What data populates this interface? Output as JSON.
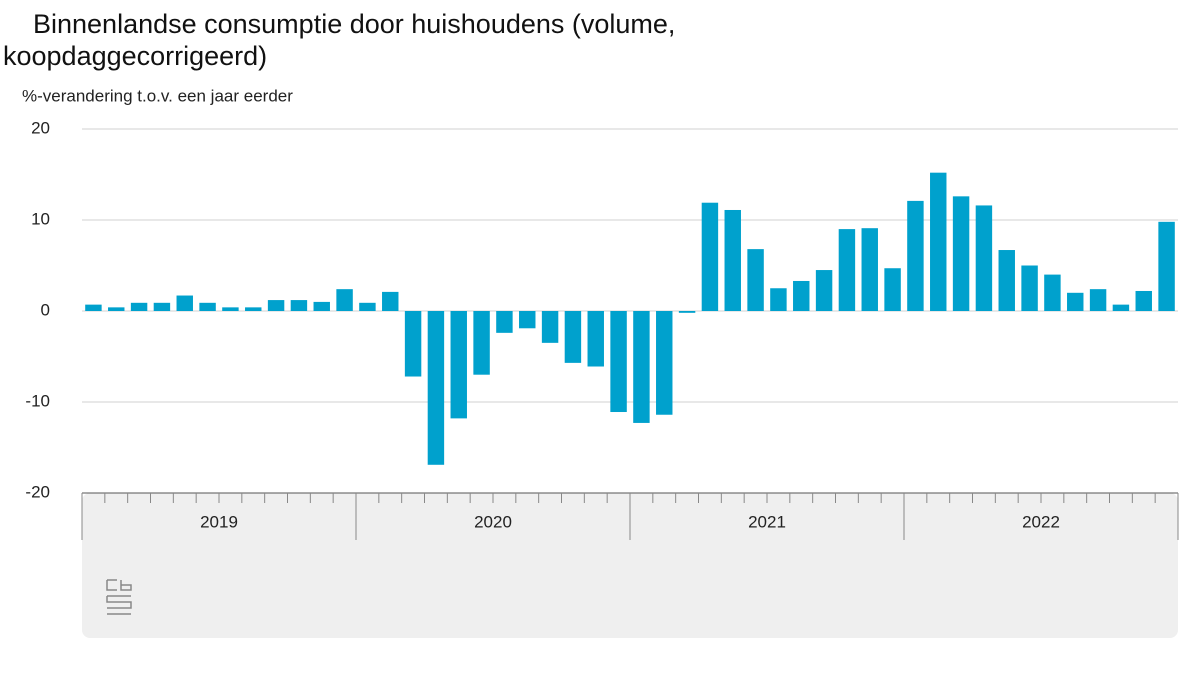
{
  "chart_data": {
    "type": "bar",
    "title": "Binnenlandse consumptie door huishoudens (volume, koopdaggecorrigeerd)",
    "y_axis_label": "%-verandering t.o.v. een jaar eerder",
    "categories": [
      null,
      null,
      null,
      null,
      null,
      null,
      null,
      null,
      null,
      null,
      null,
      null,
      null,
      null,
      null,
      null,
      null,
      null,
      null,
      null,
      null,
      null,
      null,
      null,
      null,
      null,
      null,
      null,
      null,
      null,
      null,
      null,
      null,
      null,
      null,
      null,
      null,
      null,
      null,
      null,
      null,
      null,
      null,
      null,
      null,
      null,
      null,
      null
    ],
    "year_labels": [
      "2019",
      "2020",
      "2021",
      "2022"
    ],
    "values": [
      0.7,
      0.4,
      0.9,
      0.9,
      1.7,
      0.9,
      0.4,
      0.4,
      1.2,
      1.2,
      1.0,
      2.4,
      0.9,
      2.1,
      -7.2,
      -16.9,
      -11.8,
      -7.0,
      -2.4,
      -1.9,
      -3.5,
      -5.7,
      -6.1,
      -11.1,
      -12.3,
      -11.4,
      -0.2,
      11.9,
      11.1,
      6.8,
      2.5,
      3.3,
      4.5,
      9.0,
      9.1,
      4.7,
      12.1,
      15.2,
      12.6,
      11.6,
      6.7,
      5.0,
      4.0,
      2.0,
      2.4,
      0.7,
      2.2,
      9.8
    ],
    "color": "#00a1cd",
    "ylim": [
      -20,
      20
    ],
    "yticks": [
      -20,
      -10,
      0,
      10,
      20
    ],
    "grid": true
  }
}
